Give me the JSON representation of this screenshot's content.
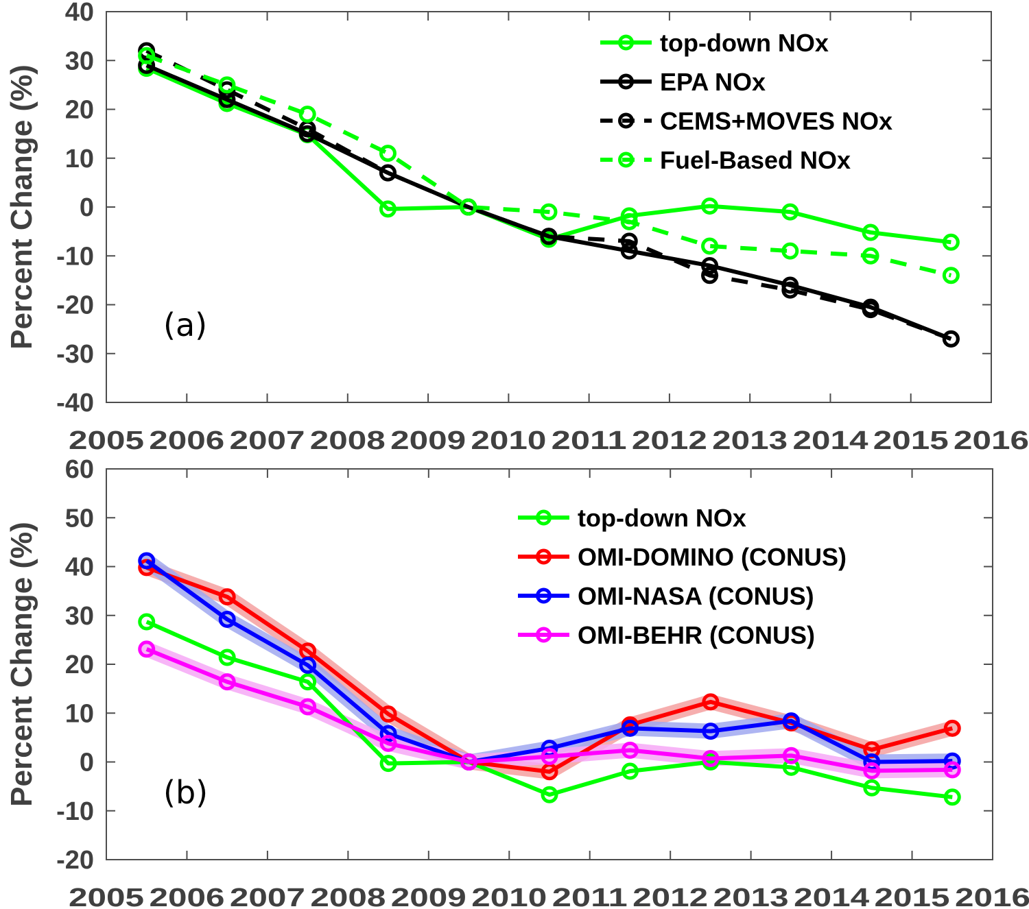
{
  "chart_data": [
    {
      "type": "line",
      "panel_label": "(a)",
      "title": "",
      "xlabel": "",
      "ylabel": "Percent Change (%)",
      "xlim": [
        2005,
        2016
      ],
      "ylim": [
        -40,
        40
      ],
      "xticks": [
        2005,
        2006,
        2007,
        2008,
        2009,
        2010,
        2011,
        2012,
        2013,
        2014,
        2015,
        2016
      ],
      "yticks": [
        -40,
        -30,
        -20,
        -10,
        0,
        10,
        20,
        30,
        40
      ],
      "grid": false,
      "legend_position": "top-right",
      "x": [
        2005.5,
        2006.5,
        2007.5,
        2008.5,
        2009.5,
        2010.5,
        2011.5,
        2012.5,
        2013.5,
        2014.5,
        2015.5
      ],
      "series": [
        {
          "name": "top-down NOx",
          "color": "#00ff00",
          "style": "solid",
          "band": false,
          "values": [
            28.4,
            21.2,
            14.8,
            -0.4,
            0,
            -6.6,
            -1.8,
            0.2,
            -1.0,
            -5.2,
            -7.2
          ]
        },
        {
          "name": "EPA NOx",
          "color": "#000000",
          "style": "solid",
          "band": false,
          "values": [
            29.0,
            22.0,
            15.0,
            7.0,
            0,
            -6.0,
            -9.0,
            -12.0,
            -16.0,
            -20.5,
            -27.0
          ]
        },
        {
          "name": "CEMS+MOVES NOx",
          "color": "#000000",
          "style": "dashed",
          "band": false,
          "values": [
            32.0,
            24.0,
            16.0,
            7.0,
            0,
            -6.0,
            -7.0,
            -14.0,
            -17.0,
            -21.0,
            -27.0
          ]
        },
        {
          "name": "Fuel-Based NOx",
          "color": "#00ff00",
          "style": "dashed",
          "band": false,
          "values": [
            31.0,
            25.0,
            19.0,
            11.0,
            0,
            -1.0,
            -3.0,
            -8.0,
            -9.0,
            -10.0,
            -14.0
          ]
        }
      ]
    },
    {
      "type": "line",
      "panel_label": "(b)",
      "title": "",
      "xlabel": "",
      "ylabel": "Percent Change (%)",
      "xlim": [
        2005,
        2016
      ],
      "ylim": [
        -20,
        60
      ],
      "xticks": [
        2005,
        2006,
        2007,
        2008,
        2009,
        2010,
        2011,
        2012,
        2013,
        2014,
        2015,
        2016
      ],
      "yticks": [
        -20,
        -10,
        0,
        10,
        20,
        30,
        40,
        50,
        60
      ],
      "grid": false,
      "legend_position": "top-right",
      "x": [
        2005.5,
        2006.5,
        2007.5,
        2008.5,
        2009.5,
        2010.5,
        2011.5,
        2012.5,
        2013.5,
        2014.5,
        2015.5
      ],
      "series": [
        {
          "name": "top-down NOx",
          "color": "#00ff00",
          "style": "solid",
          "band": false,
          "values": [
            28.7,
            21.4,
            16.4,
            -0.3,
            0,
            -6.7,
            -1.9,
            0,
            -1.1,
            -5.3,
            -7.2
          ]
        },
        {
          "name": "OMI-DOMINO (CONUS)",
          "color": "#ff0000",
          "band_color": "#f4a0a0",
          "style": "solid",
          "band": true,
          "values": [
            39.8,
            33.8,
            22.7,
            9.8,
            0,
            -2.0,
            7.6,
            12.3,
            8.0,
            2.5,
            6.9
          ]
        },
        {
          "name": "OMI-NASA (CONUS)",
          "color": "#0000ff",
          "band_color": "#a0a8f0",
          "style": "solid",
          "band": true,
          "values": [
            41.2,
            29.2,
            19.8,
            5.8,
            0,
            2.8,
            6.9,
            6.3,
            8.4,
            0,
            0.2
          ]
        },
        {
          "name": "OMI-BEHR (CONUS)",
          "color": "#ff00ff",
          "band_color": "#f6a8f6",
          "style": "solid",
          "band": true,
          "values": [
            23.1,
            16.4,
            11.3,
            3.8,
            0,
            1.1,
            2.4,
            0.7,
            1.3,
            -1.8,
            -1.6
          ]
        }
      ]
    }
  ]
}
